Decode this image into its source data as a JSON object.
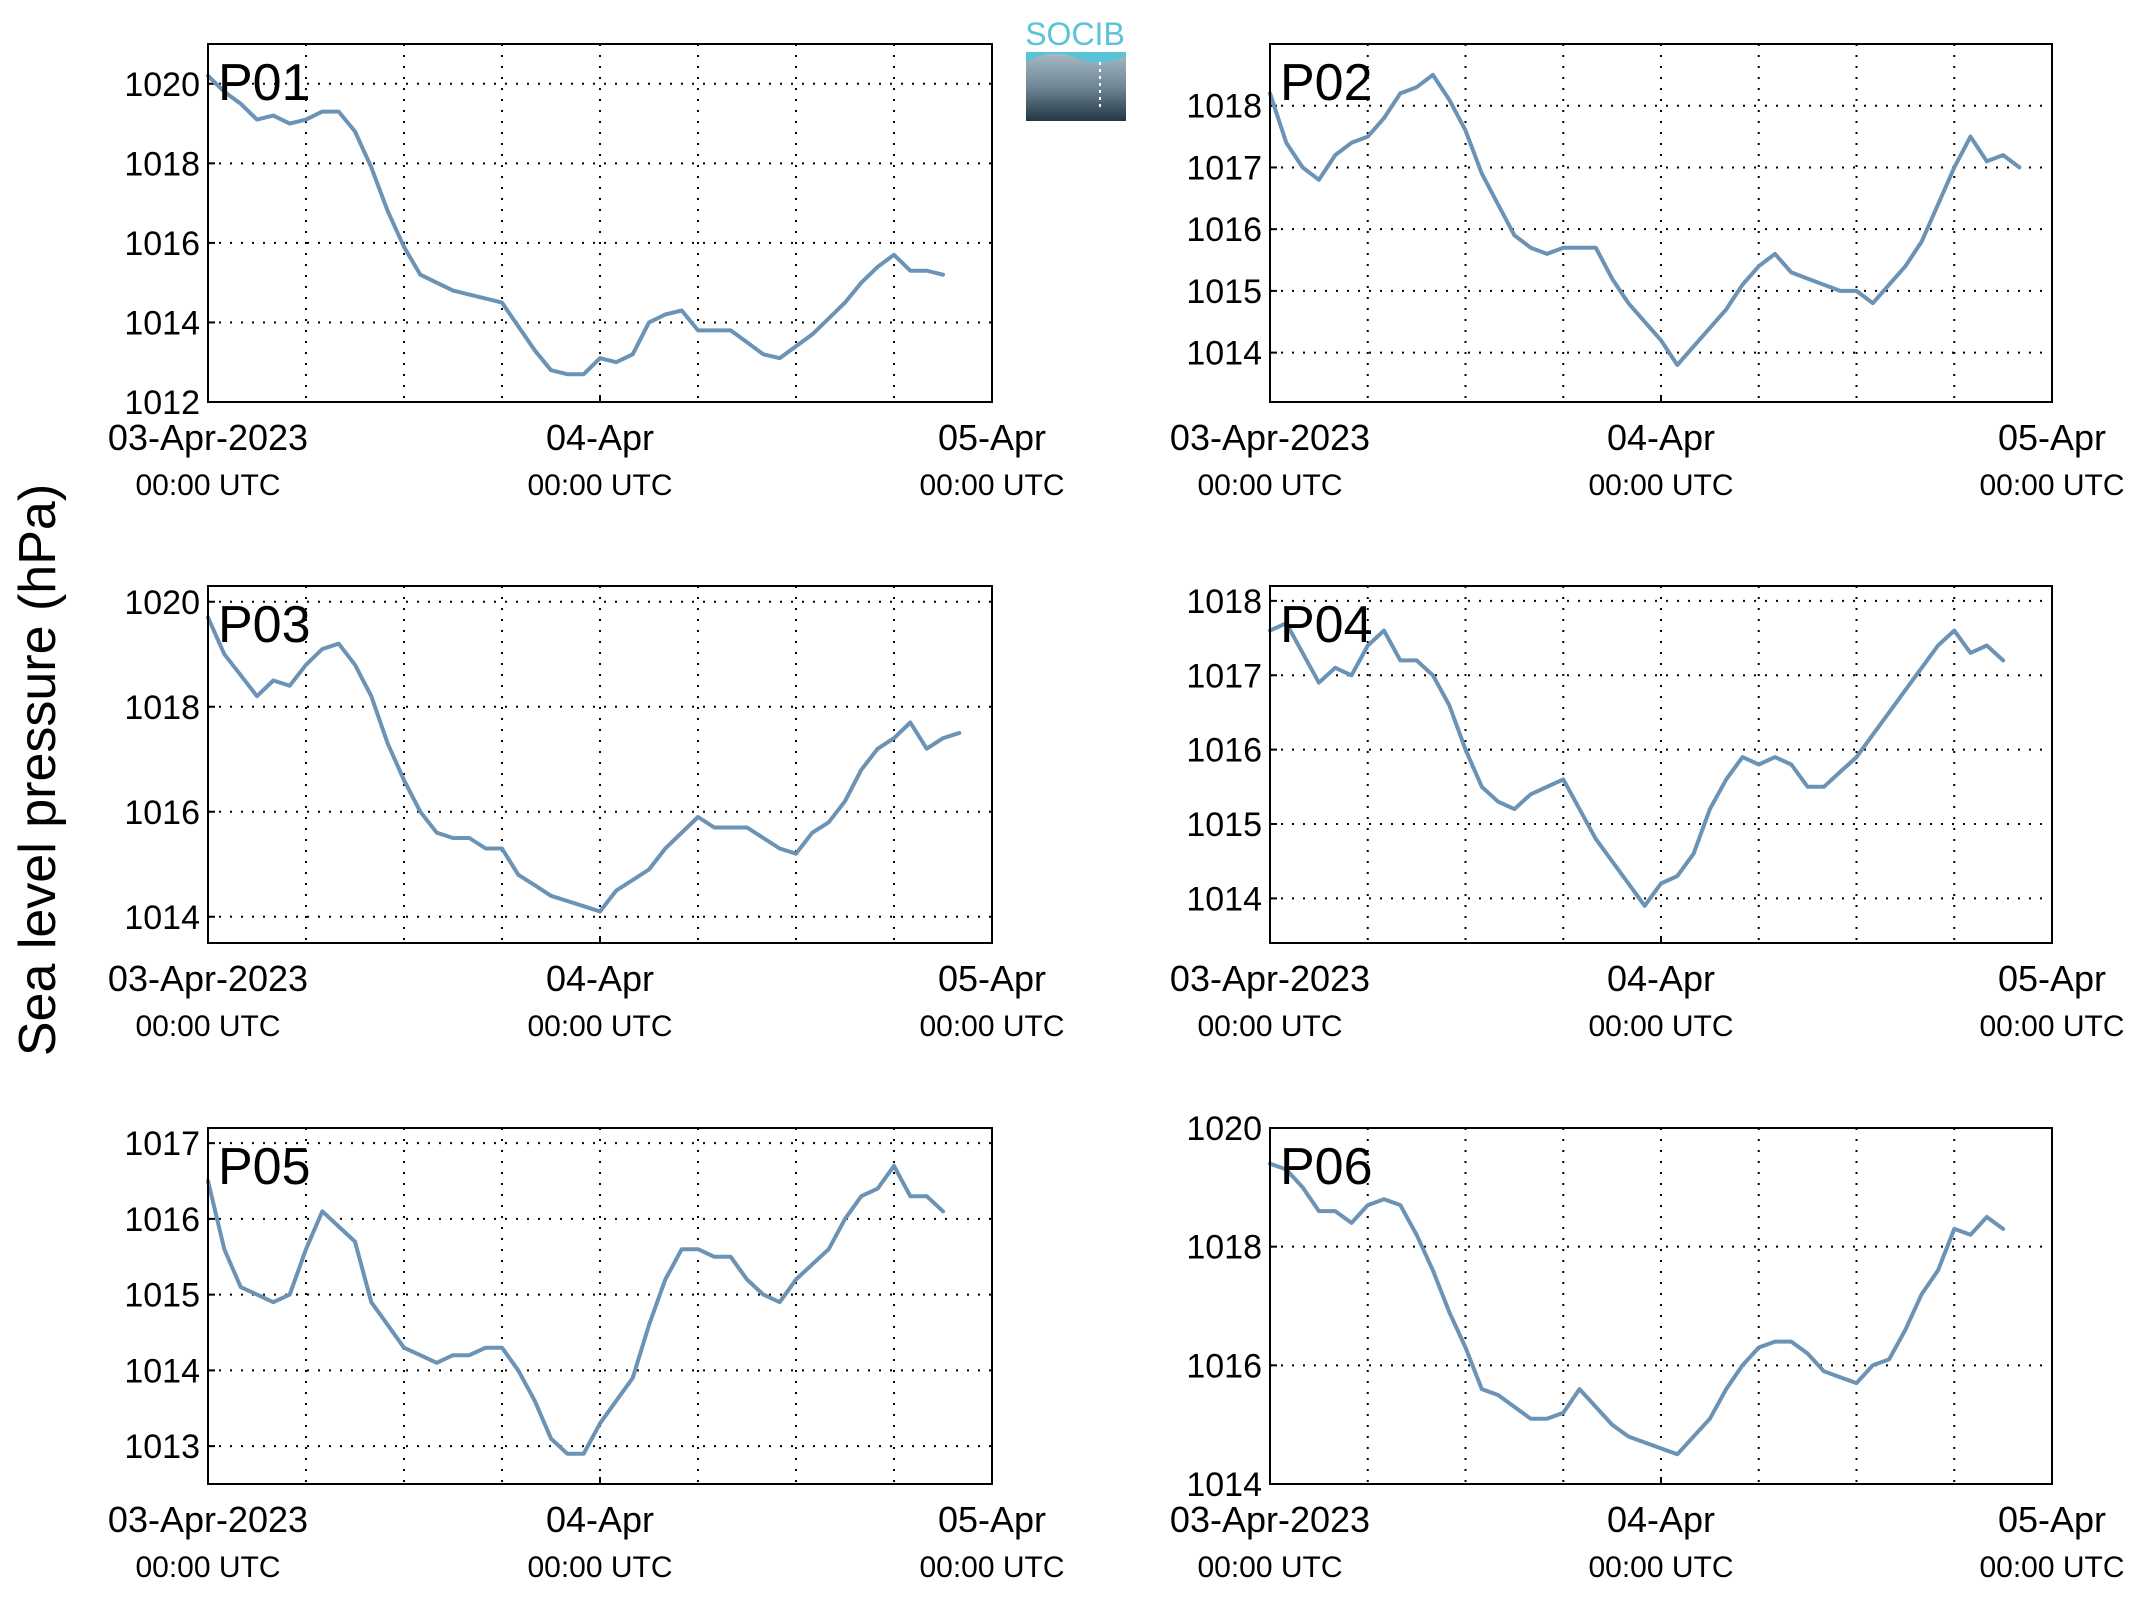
{
  "ylabel": "Sea level pressure (hPa)",
  "logo": {
    "text": "SOCIB"
  },
  "colors": {
    "line": "#6a93b5",
    "panel_label": "#ff0000",
    "grid": "#000000",
    "logo_text": "#5bc3d6"
  },
  "chart_data": [
    {
      "type": "line",
      "title": "P01",
      "xticks": [
        {
          "top": "03-Apr-2023",
          "bottom": "00:00 UTC"
        },
        {
          "top": "04-Apr",
          "bottom": "00:00 UTC"
        },
        {
          "top": "05-Apr",
          "bottom": "00:00 UTC"
        }
      ],
      "xlim": [
        0,
        48
      ],
      "ylim": [
        1012,
        1021
      ],
      "yticks": [
        1012,
        1014,
        1016,
        1018,
        1020
      ],
      "x": [
        0,
        1,
        2,
        3,
        4,
        5,
        6,
        7,
        8,
        9,
        10,
        11,
        12,
        13,
        14,
        15,
        16,
        17,
        18,
        19,
        20,
        21,
        22,
        23,
        24,
        25,
        26,
        27,
        28,
        29,
        30,
        31,
        32,
        33,
        34,
        35,
        36,
        37,
        38,
        39,
        40,
        41,
        42,
        43,
        44,
        45,
        46,
        47,
        48
      ],
      "values": [
        1020.2,
        1019.8,
        1019.5,
        1019.1,
        1019.2,
        1019.0,
        1019.1,
        1019.3,
        1019.3,
        1018.8,
        1017.9,
        1016.8,
        1015.9,
        1015.2,
        1015.0,
        1014.8,
        1014.7,
        1014.6,
        1014.5,
        1013.9,
        1013.3,
        1012.8,
        1012.7,
        1012.7,
        1013.1,
        1013.0,
        1013.2,
        1014.0,
        1014.2,
        1014.3,
        1013.8,
        1013.8,
        1013.8,
        1013.5,
        1013.2,
        1013.1,
        1013.4,
        1013.7,
        1014.1,
        1014.5,
        1015.0,
        1015.4,
        1015.7,
        1015.3,
        1015.3,
        1015.2,
        null,
        null,
        null
      ]
    },
    {
      "type": "line",
      "title": "P02",
      "xticks": [
        {
          "top": "03-Apr-2023",
          "bottom": "00:00 UTC"
        },
        {
          "top": "04-Apr",
          "bottom": "00:00 UTC"
        },
        {
          "top": "05-Apr",
          "bottom": "00:00 UTC"
        }
      ],
      "xlim": [
        0,
        48
      ],
      "ylim": [
        1013.2,
        1019
      ],
      "yticks": [
        1014,
        1015,
        1016,
        1017,
        1018
      ],
      "x": [
        0,
        1,
        2,
        3,
        4,
        5,
        6,
        7,
        8,
        9,
        10,
        11,
        12,
        13,
        14,
        15,
        16,
        17,
        18,
        19,
        20,
        21,
        22,
        23,
        24,
        25,
        26,
        27,
        28,
        29,
        30,
        31,
        32,
        33,
        34,
        35,
        36,
        37,
        38,
        39,
        40,
        41,
        42,
        43,
        44,
        45,
        46,
        47,
        48
      ],
      "values": [
        1018.2,
        1017.4,
        1017.0,
        1016.8,
        1017.2,
        1017.4,
        1017.5,
        1017.8,
        1018.2,
        1018.3,
        1018.5,
        1018.1,
        1017.6,
        1016.9,
        1016.4,
        1015.9,
        1015.7,
        1015.6,
        1015.7,
        1015.7,
        1015.7,
        1015.2,
        1014.8,
        1014.5,
        1014.2,
        1013.8,
        1014.1,
        1014.4,
        1014.7,
        1015.1,
        1015.4,
        1015.6,
        1015.3,
        1015.2,
        1015.1,
        1015.0,
        1015.0,
        1014.8,
        1015.1,
        1015.4,
        1015.8,
        1016.4,
        1017.0,
        1017.5,
        1017.1,
        1017.2,
        1017.0,
        null,
        null
      ]
    },
    {
      "type": "line",
      "title": "P03",
      "xticks": [
        {
          "top": "03-Apr-2023",
          "bottom": "00:00 UTC"
        },
        {
          "top": "04-Apr",
          "bottom": "00:00 UTC"
        },
        {
          "top": "05-Apr",
          "bottom": "00:00 UTC"
        }
      ],
      "xlim": [
        0,
        48
      ],
      "ylim": [
        1013.5,
        1020.3
      ],
      "yticks": [
        1014,
        1016,
        1018,
        1020
      ],
      "x": [
        0,
        1,
        2,
        3,
        4,
        5,
        6,
        7,
        8,
        9,
        10,
        11,
        12,
        13,
        14,
        15,
        16,
        17,
        18,
        19,
        20,
        21,
        22,
        23,
        24,
        25,
        26,
        27,
        28,
        29,
        30,
        31,
        32,
        33,
        34,
        35,
        36,
        37,
        38,
        39,
        40,
        41,
        42,
        43,
        44,
        45,
        46,
        47,
        48
      ],
      "values": [
        1019.7,
        1019.0,
        1018.6,
        1018.2,
        1018.5,
        1018.4,
        1018.8,
        1019.1,
        1019.2,
        1018.8,
        1018.2,
        1017.3,
        1016.6,
        1016.0,
        1015.6,
        1015.5,
        1015.5,
        1015.3,
        1015.3,
        1014.8,
        1014.6,
        1014.4,
        1014.3,
        1014.2,
        1014.1,
        1014.5,
        1014.7,
        1014.9,
        1015.3,
        1015.6,
        1015.9,
        1015.7,
        1015.7,
        1015.7,
        1015.5,
        1015.3,
        1015.2,
        1015.6,
        1015.8,
        1016.2,
        1016.8,
        1017.2,
        1017.4,
        1017.7,
        1017.2,
        1017.4,
        1017.5,
        null,
        null
      ]
    },
    {
      "type": "line",
      "title": "P04",
      "xticks": [
        {
          "top": "03-Apr-2023",
          "bottom": "00:00 UTC"
        },
        {
          "top": "04-Apr",
          "bottom": "00:00 UTC"
        },
        {
          "top": "05-Apr",
          "bottom": "00:00 UTC"
        }
      ],
      "xlim": [
        0,
        48
      ],
      "ylim": [
        1013.4,
        1018.2
      ],
      "yticks": [
        1014,
        1015,
        1016,
        1017,
        1018
      ],
      "x": [
        0,
        1,
        2,
        3,
        4,
        5,
        6,
        7,
        8,
        9,
        10,
        11,
        12,
        13,
        14,
        15,
        16,
        17,
        18,
        19,
        20,
        21,
        22,
        23,
        24,
        25,
        26,
        27,
        28,
        29,
        30,
        31,
        32,
        33,
        34,
        35,
        36,
        37,
        38,
        39,
        40,
        41,
        42,
        43,
        44,
        45,
        46,
        47,
        48
      ],
      "values": [
        1017.6,
        1017.7,
        1017.3,
        1016.9,
        1017.1,
        1017.0,
        1017.4,
        1017.6,
        1017.2,
        1017.2,
        1017.0,
        1016.6,
        1016.0,
        1015.5,
        1015.3,
        1015.2,
        1015.4,
        1015.5,
        1015.6,
        1015.2,
        1014.8,
        1014.5,
        1014.2,
        1013.9,
        1014.2,
        1014.3,
        1014.6,
        1015.2,
        1015.6,
        1015.9,
        1015.8,
        1015.9,
        1015.8,
        1015.5,
        1015.5,
        1015.7,
        1015.9,
        1016.2,
        1016.5,
        1016.8,
        1017.1,
        1017.4,
        1017.6,
        1017.3,
        1017.4,
        1017.2,
        null,
        null,
        null
      ]
    },
    {
      "type": "line",
      "title": "P05",
      "xticks": [
        {
          "top": "03-Apr-2023",
          "bottom": "00:00 UTC"
        },
        {
          "top": "04-Apr",
          "bottom": "00:00 UTC"
        },
        {
          "top": "05-Apr",
          "bottom": "00:00 UTC"
        }
      ],
      "xlim": [
        0,
        48
      ],
      "ylim": [
        1012.5,
        1017.2
      ],
      "yticks": [
        1013,
        1014,
        1015,
        1016,
        1017
      ],
      "x": [
        0,
        1,
        2,
        3,
        4,
        5,
        6,
        7,
        8,
        9,
        10,
        11,
        12,
        13,
        14,
        15,
        16,
        17,
        18,
        19,
        20,
        21,
        22,
        23,
        24,
        25,
        26,
        27,
        28,
        29,
        30,
        31,
        32,
        33,
        34,
        35,
        36,
        37,
        38,
        39,
        40,
        41,
        42,
        43,
        44,
        45,
        46,
        47,
        48
      ],
      "values": [
        1016.5,
        1015.6,
        1015.1,
        1015.0,
        1014.9,
        1015.0,
        1015.6,
        1016.1,
        1015.9,
        1015.7,
        1014.9,
        1014.6,
        1014.3,
        1014.2,
        1014.1,
        1014.2,
        1014.2,
        1014.3,
        1014.3,
        1014.0,
        1013.6,
        1013.1,
        1012.9,
        1012.9,
        1013.3,
        1013.6,
        1013.9,
        1014.6,
        1015.2,
        1015.6,
        1015.6,
        1015.5,
        1015.5,
        1015.2,
        1015.0,
        1014.9,
        1015.2,
        1015.4,
        1015.6,
        1016.0,
        1016.3,
        1016.4,
        1016.7,
        1016.3,
        1016.3,
        1016.1,
        null,
        null,
        null
      ]
    },
    {
      "type": "line",
      "title": "P06",
      "xticks": [
        {
          "top": "03-Apr-2023",
          "bottom": "00:00 UTC"
        },
        {
          "top": "04-Apr",
          "bottom": "00:00 UTC"
        },
        {
          "top": "05-Apr",
          "bottom": "00:00 UTC"
        }
      ],
      "xlim": [
        0,
        48
      ],
      "ylim": [
        1014,
        1020
      ],
      "yticks": [
        1014,
        1016,
        1018,
        1020
      ],
      "x": [
        0,
        1,
        2,
        3,
        4,
        5,
        6,
        7,
        8,
        9,
        10,
        11,
        12,
        13,
        14,
        15,
        16,
        17,
        18,
        19,
        20,
        21,
        22,
        23,
        24,
        25,
        26,
        27,
        28,
        29,
        30,
        31,
        32,
        33,
        34,
        35,
        36,
        37,
        38,
        39,
        40,
        41,
        42,
        43,
        44,
        45,
        46,
        47,
        48
      ],
      "values": [
        1019.4,
        1019.3,
        1019.0,
        1018.6,
        1018.6,
        1018.4,
        1018.7,
        1018.8,
        1018.7,
        1018.2,
        1017.6,
        1016.9,
        1016.3,
        1015.6,
        1015.5,
        1015.3,
        1015.1,
        1015.1,
        1015.2,
        1015.6,
        1015.3,
        1015.0,
        1014.8,
        1014.7,
        1014.6,
        1014.5,
        1014.8,
        1015.1,
        1015.6,
        1016.0,
        1016.3,
        1016.4,
        1016.4,
        1016.2,
        1015.9,
        1015.8,
        1015.7,
        1016.0,
        1016.1,
        1016.6,
        1017.2,
        1017.6,
        1018.3,
        1018.2,
        1018.5,
        1018.3,
        null,
        null,
        null
      ]
    }
  ]
}
